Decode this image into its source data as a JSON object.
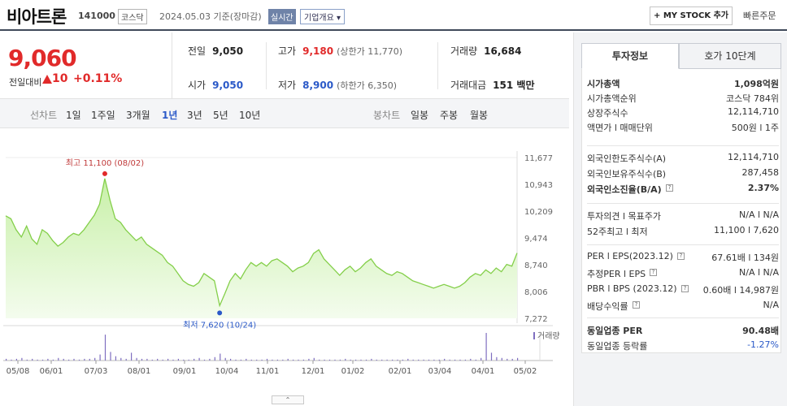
{
  "header": {
    "stock_name": "비아트론",
    "stock_code": "141000",
    "market": "코스닥",
    "date_text": "2024.05.03  기준(장마감)",
    "live_badge": "실시간",
    "company_info": "기업개요 ▾",
    "mystock_button": "+ MY STOCK 추가",
    "quick_order": "빠른주문"
  },
  "summary": {
    "price": "9,060",
    "change_label": "전일대비",
    "change_value": "10",
    "change_rate": "+0.11%",
    "prev_close_label": "전일",
    "prev_close": "9,050",
    "open_label": "시가",
    "open": "9,050",
    "high_label": "고가",
    "high": "9,180",
    "upper_limit": "(상한가 11,770)",
    "low_label": "저가",
    "low": "8,900",
    "lower_limit": "(하한가 6,350)",
    "volume_label": "거래량",
    "volume": "16,684",
    "amount_label": "거래대금",
    "amount": "151 백만"
  },
  "period_bar": {
    "line_chart": "선차트",
    "periods": [
      "1일",
      "1주일",
      "3개월",
      "1년",
      "3년",
      "5년",
      "10년"
    ],
    "selected": "1년",
    "candle_chart": "봉차트",
    "candles": [
      "일봉",
      "주봉",
      "월봉"
    ]
  },
  "chart_data": {
    "type": "area",
    "title": "",
    "x_ticks": [
      "05/08",
      "06/01",
      "07/03",
      "08/01",
      "09/01",
      "10/04",
      "11/01",
      "12/01",
      "01/02",
      "02/01",
      "03/04",
      "04/01",
      "05/02"
    ],
    "y_ticks": [
      "11,677",
      "10,943",
      "10,209",
      "9,474",
      "8,740",
      "8,006",
      "7,272"
    ],
    "ylim": [
      7272,
      11677
    ],
    "values": [
      10080,
      10000,
      9700,
      9500,
      9800,
      9450,
      9300,
      9700,
      9600,
      9400,
      9250,
      9350,
      9500,
      9600,
      9550,
      9700,
      9900,
      10100,
      10400,
      11100,
      10500,
      10000,
      9900,
      9700,
      9550,
      9400,
      9500,
      9300,
      9200,
      9100,
      9000,
      8800,
      8700,
      8500,
      8300,
      8200,
      8150,
      8250,
      8500,
      8400,
      8300,
      7620,
      7950,
      8300,
      8500,
      8350,
      8600,
      8800,
      8700,
      8800,
      8700,
      8850,
      8900,
      8800,
      8700,
      8550,
      8650,
      8700,
      8800,
      9050,
      9150,
      8900,
      8750,
      8600,
      8450,
      8600,
      8700,
      8550,
      8650,
      8800,
      8900,
      8700,
      8600,
      8500,
      8450,
      8550,
      8500,
      8400,
      8300,
      8250,
      8200,
      8150,
      8100,
      8150,
      8200,
      8150,
      8100,
      8150,
      8250,
      8400,
      8500,
      8450,
      8600,
      8500,
      8650,
      8550,
      8750,
      8700,
      9060
    ],
    "high_label": "최고 11,100 (08/02)",
    "low_label": "최저 7,620 (10/24)",
    "volume_legend": "거래량",
    "volume": [
      2,
      1,
      2,
      3,
      1,
      2,
      1,
      1,
      2,
      1,
      3,
      2,
      1,
      2,
      1,
      2,
      2,
      3,
      7,
      30,
      10,
      5,
      3,
      2,
      9,
      3,
      2,
      2,
      1,
      2,
      1,
      2,
      1,
      2,
      1,
      1,
      2,
      3,
      1,
      2,
      4,
      8,
      3,
      2,
      1,
      1,
      2,
      1,
      1,
      1,
      2,
      1,
      1,
      1,
      2,
      1,
      1,
      1,
      2,
      3,
      1,
      1,
      1,
      1,
      1,
      2,
      1,
      1,
      1,
      1,
      2,
      1,
      1,
      1,
      1,
      1,
      1,
      2,
      1,
      1,
      1,
      1,
      1,
      1,
      2,
      1,
      1,
      1,
      1,
      2,
      1,
      3,
      32,
      9,
      4,
      3,
      2,
      2,
      3
    ]
  },
  "collapse_button": "⌃",
  "right_panel": {
    "tabs": [
      "투자정보",
      "호가 10단계"
    ],
    "rows1": [
      {
        "k": "시가총액",
        "v": "1,098억원",
        "bold": true
      },
      {
        "k": "시가총액순위",
        "v": "코스닥 784위"
      },
      {
        "k": "상장주식수",
        "v": "12,114,710"
      },
      {
        "k": "액면가 l 매매단위",
        "v": "500원 l 1주"
      }
    ],
    "rows2": [
      {
        "k": "외국인한도주식수(A)",
        "v": "12,114,710"
      },
      {
        "k": "외국인보유주식수(B)",
        "v": "287,458"
      },
      {
        "k": "외국인소진율(B/A)",
        "v": "2.37%",
        "bold": true
      }
    ],
    "rows3": [
      {
        "k": "투자의견 l 목표주가",
        "v": "N/A l N/A"
      },
      {
        "k": "52주최고 l 최저",
        "v": "11,100 l 7,620"
      }
    ],
    "rows4": [
      {
        "k": "PER l EPS(2023.12)",
        "v": "67.61배 l 134원"
      },
      {
        "k": "추정PER l EPS",
        "v": "N/A l N/A"
      },
      {
        "k": "PBR l BPS (2023.12)",
        "v": "0.60배 l 14,987원"
      },
      {
        "k": "배당수익률",
        "v": "N/A"
      }
    ],
    "rows5": [
      {
        "k": "동일업종 PER",
        "v": "90.48배",
        "bold": true
      },
      {
        "k": "동일업종 등락률",
        "v": "-1.27%"
      }
    ]
  }
}
